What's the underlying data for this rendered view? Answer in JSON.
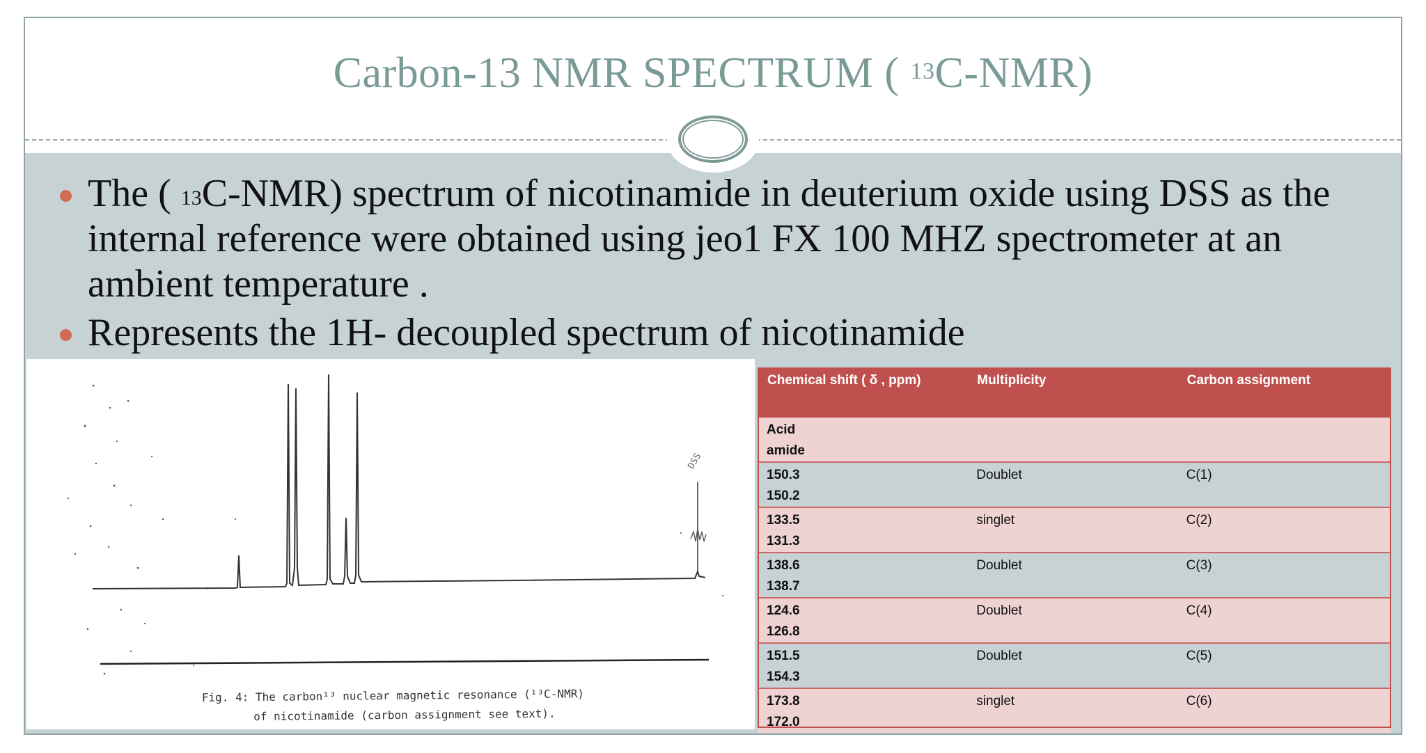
{
  "slide": {
    "title_prefix": "Carbon-13 NMR SPECTRUM ( ",
    "title_sup": "13",
    "title_suffix": "C-NMR)"
  },
  "bullets": [
    {
      "before": "The ( ",
      "sup": "13",
      "after": "C-NMR) spectrum of nicotinamide in deuterium oxide using DSS as the internal reference were obtained using jeo1 FX 100 MHZ spectrometer at an ambient temperature ."
    },
    {
      "text": "Represents the 1H- decoupled spectrum of nicotinamide"
    }
  ],
  "figure": {
    "caption_line1": "Fig. 4:  The carbon¹³ nuclear magnetic resonance (¹³C-NMR)",
    "caption_line2": "of nicotinamide (carbon assignment see text).",
    "reference_label": "DSS"
  },
  "table": {
    "headers": [
      "Chemical shift ( δ , ppm)",
      "Multiplicity",
      "Carbon  assignment"
    ],
    "subheader": [
      "Acid",
      "amide"
    ],
    "rows": [
      {
        "shift_acid": "150.3",
        "shift_amide": "150.2",
        "multiplicity": "Doublet",
        "assignment": "C(1)"
      },
      {
        "shift_acid": "133.5",
        "shift_amide": "131.3",
        "multiplicity": "singlet",
        "assignment": "C(2)"
      },
      {
        "shift_acid": "138.6",
        "shift_amide": "138.7",
        "multiplicity": "Doublet",
        "assignment": "C(3)"
      },
      {
        "shift_acid": "124.6",
        "shift_amide": "126.8",
        "multiplicity": "Doublet",
        "assignment": "C(4)"
      },
      {
        "shift_acid": "151.5",
        "shift_amide": "154.3",
        "multiplicity": "Doublet",
        "assignment": "C(5)"
      },
      {
        "shift_acid": "173.8",
        "shift_amide": "172.0",
        "multiplicity": "singlet",
        "assignment": "C(6)"
      }
    ]
  },
  "colors": {
    "title": "#7a9a98",
    "band": "#c6d2d4",
    "bullet_dot": "#d26a55",
    "table_header": "#c0504d",
    "row_pink": "#efd3d3",
    "row_blue": "#c6d2d4"
  }
}
